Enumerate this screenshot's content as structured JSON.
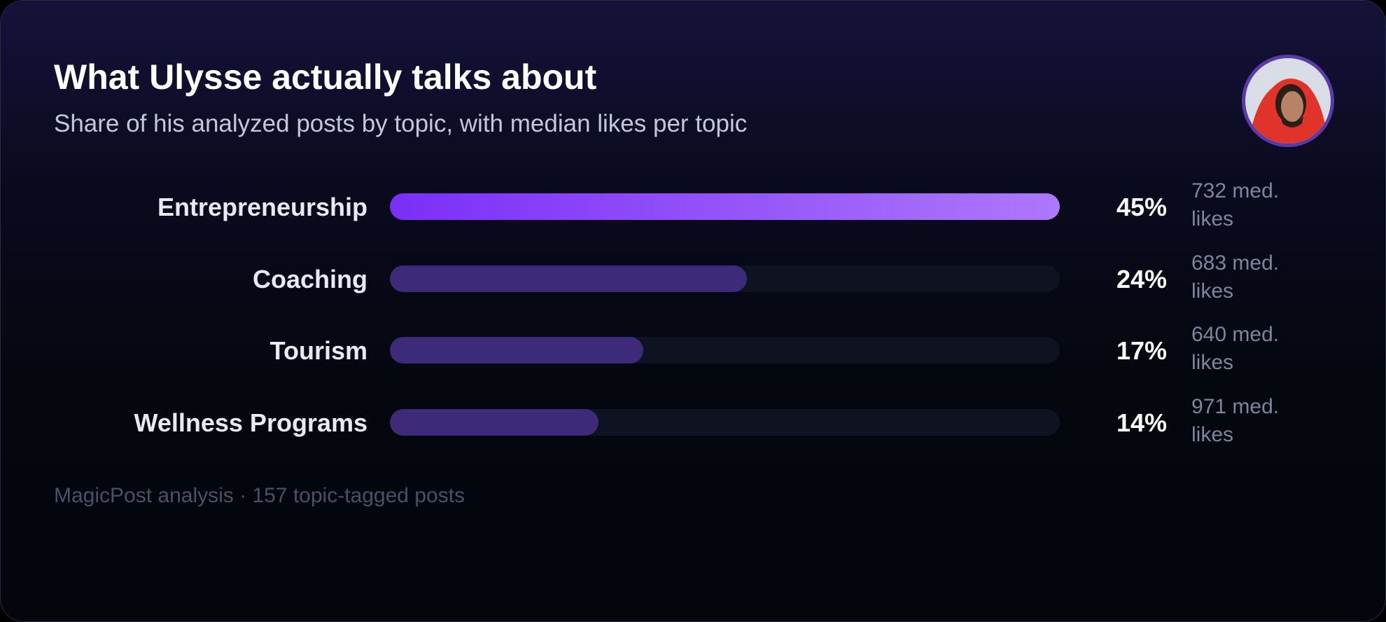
{
  "chart_data": {
    "type": "bar",
    "title": "What Ulysse actually talks about",
    "subtitle": "Share of his analyzed posts by topic, with median likes per topic",
    "categories": [
      "Entrepreneurship",
      "Coaching",
      "Tourism",
      "Wellness Programs"
    ],
    "values": [
      45,
      24,
      17,
      14
    ],
    "value_labels": [
      "45%",
      "24%",
      "17%",
      "14%"
    ],
    "median_likes_labels": [
      "732 med. likes",
      "683 med. likes",
      "640 med. likes",
      "971 med. likes"
    ],
    "xlim": [
      0,
      45
    ],
    "footer": "MagicPost analysis · 157 topic-tagged posts"
  }
}
